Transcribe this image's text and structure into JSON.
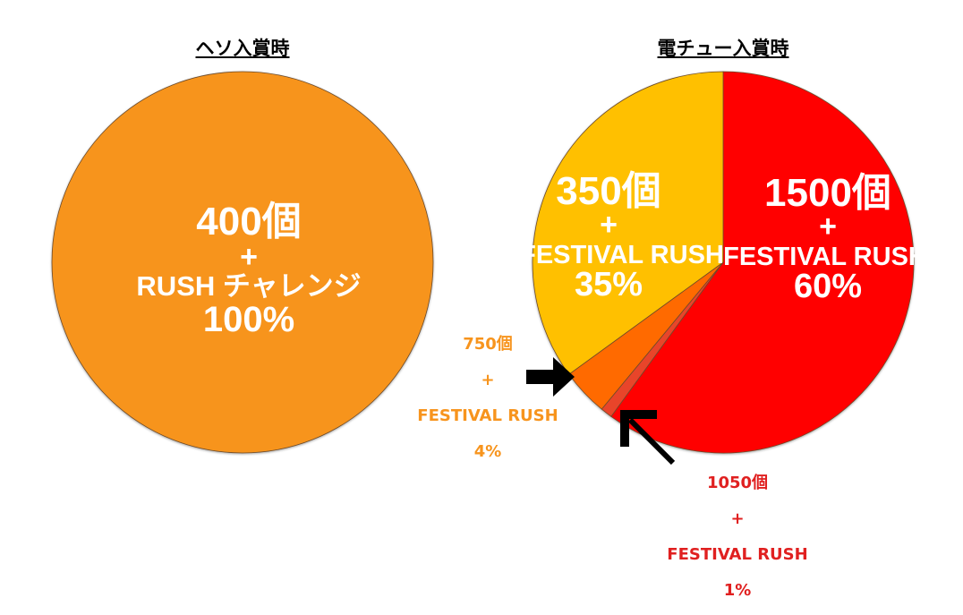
{
  "chart_data": [
    {
      "type": "pie",
      "title": "ヘソ入賞時",
      "slices": [
        {
          "value": 100,
          "color": "#F7941D",
          "labels": [
            "400個",
            "+",
            "RUSH チャレンジ",
            "100%"
          ]
        }
      ]
    },
    {
      "type": "pie",
      "title": "電チュー入賞時",
      "slices": [
        {
          "value": 60,
          "color": "#FF0000",
          "labels": [
            "1500個",
            "+",
            "FESTIVAL RUSH",
            "60%"
          ]
        },
        {
          "value": 1,
          "color": "#E8452C",
          "labels": [
            "1050個",
            "+",
            "FESTIVAL RUSH",
            "1%"
          ]
        },
        {
          "value": 4,
          "color": "#FF6A00",
          "labels": [
            "750個",
            "+",
            "FESTIVAL RUSH",
            "4%"
          ]
        },
        {
          "value": 35,
          "color": "#FFC000",
          "labels": [
            "350個",
            "+",
            "FESTIVAL RUSH",
            "35%"
          ]
        }
      ]
    }
  ],
  "colors": {
    "callout_750": "#F7941D",
    "callout_1050": "#E02020",
    "arrow": "#000000"
  },
  "icons": {
    "arrow_750": "arrow-right-icon",
    "arrow_1050": "arrow-up-left-icon"
  }
}
